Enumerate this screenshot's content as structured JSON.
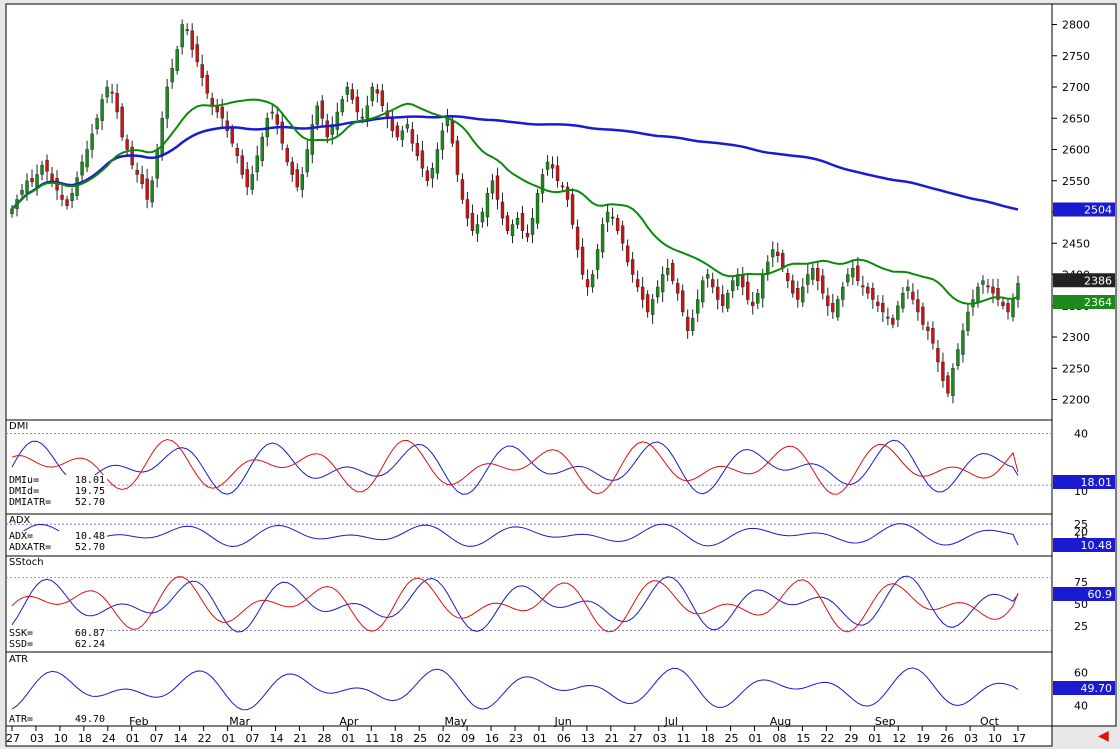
{
  "panels": {
    "dmi": {
      "title": "DMI",
      "labels": [
        "DMIu=",
        "DMId=",
        "DMIATR="
      ],
      "values": [
        "18.01",
        "19.75",
        "52.70"
      ],
      "badge_up": "18.01",
      "badge_down": "19.75"
    },
    "adx": {
      "title": "ADX",
      "labels": [
        "ADX=",
        "ADXATR="
      ],
      "values": [
        "10.48",
        "52.70"
      ],
      "badge": "10.48"
    },
    "sstoch": {
      "title": "SStoch",
      "labels": [
        "SSK=",
        "SSD="
      ],
      "values": [
        "60.87",
        "62.24"
      ],
      "badge": "60.9"
    },
    "atr": {
      "title": "ATR",
      "labels": [
        "ATR="
      ],
      "values": [
        "49.70"
      ],
      "badge": "49.70"
    }
  },
  "price_badges": {
    "ma200": "2504",
    "last": "2386",
    "ma20": "2364"
  },
  "colors": {
    "up": "#1a8a1a",
    "down": "#c81414",
    "ma20": "#0a8a0a",
    "ma200": "#1a1ad0",
    "dmi_up": "#1a1ad0",
    "dmi_down": "#e01010",
    "badge": "#1a1ad0"
  },
  "icons": {
    "back": "red-left-arrow-icon"
  },
  "chart_data": [
    {
      "type": "candlestick",
      "title": "",
      "ylim": [
        2180,
        2820
      ],
      "yticks": [
        2200,
        2250,
        2300,
        2350,
        2400,
        2450,
        2500,
        2550,
        2600,
        2650,
        2700,
        2750,
        2800
      ],
      "grid": false,
      "months": [
        {
          "label": "Feb",
          "day_index": 25
        },
        {
          "label": "Mar",
          "day_index": 45
        },
        {
          "label": "Apr",
          "day_index": 67
        },
        {
          "label": "May",
          "day_index": 88
        },
        {
          "label": "Jun",
          "day_index": 110
        },
        {
          "label": "Jul",
          "day_index": 132
        },
        {
          "label": "Aug",
          "day_index": 153
        },
        {
          "label": "Sep",
          "day_index": 174
        },
        {
          "label": "Oct",
          "day_index": 195
        }
      ],
      "x_ticks": [
        "27",
        "03",
        "10",
        "18",
        "24",
        "01",
        "07",
        "14",
        "22",
        "01",
        "07",
        "14",
        "21",
        "28",
        "01",
        "11",
        "18",
        "25",
        "02",
        "09",
        "16",
        "23",
        "01",
        "06",
        "13",
        "21",
        "27",
        "03",
        "11",
        "18",
        "25",
        "01",
        "08",
        "15",
        "22",
        "29",
        "01",
        "12",
        "19",
        "26",
        "03",
        "10",
        "17"
      ],
      "closes": [
        2505,
        2520,
        2535,
        2550,
        2548,
        2560,
        2575,
        2565,
        2550,
        2535,
        2520,
        2510,
        2530,
        2555,
        2580,
        2600,
        2625,
        2650,
        2680,
        2700,
        2690,
        2660,
        2620,
        2600,
        2575,
        2560,
        2545,
        2520,
        2550,
        2600,
        2650,
        2700,
        2730,
        2760,
        2800,
        2790,
        2760,
        2740,
        2715,
        2690,
        2670,
        2660,
        2650,
        2630,
        2610,
        2590,
        2560,
        2540,
        2560,
        2590,
        2620,
        2650,
        2660,
        2640,
        2610,
        2580,
        2560,
        2540,
        2560,
        2600,
        2640,
        2670,
        2650,
        2620,
        2640,
        2660,
        2680,
        2700,
        2680,
        2660,
        2650,
        2670,
        2700,
        2690,
        2670,
        2650,
        2630,
        2620,
        2630,
        2640,
        2610,
        2590,
        2570,
        2550,
        2570,
        2600,
        2630,
        2650,
        2610,
        2560,
        2520,
        2490,
        2470,
        2480,
        2500,
        2530,
        2550,
        2520,
        2490,
        2470,
        2480,
        2490,
        2470,
        2460,
        2490,
        2530,
        2560,
        2580,
        2570,
        2550,
        2540,
        2520,
        2480,
        2440,
        2400,
        2380,
        2400,
        2440,
        2480,
        2500,
        2490,
        2470,
        2450,
        2420,
        2400,
        2380,
        2360,
        2340,
        2360,
        2380,
        2400,
        2410,
        2390,
        2370,
        2340,
        2310,
        2330,
        2360,
        2390,
        2400,
        2380,
        2360,
        2350,
        2370,
        2390,
        2400,
        2380,
        2360,
        2350,
        2370,
        2400,
        2420,
        2440,
        2430,
        2410,
        2390,
        2370,
        2360,
        2380,
        2400,
        2410,
        2390,
        2370,
        2350,
        2340,
        2360,
        2380,
        2400,
        2410,
        2390,
        2380,
        2370,
        2360,
        2350,
        2340,
        2330,
        2320,
        2350,
        2370,
        2380,
        2360,
        2340,
        2320,
        2310,
        2290,
        2260,
        2230,
        2210,
        2250,
        2280,
        2310,
        2340,
        2360,
        2380,
        2390,
        2380,
        2370,
        2360,
        2350,
        2340,
        2360,
        2386
      ],
      "ma20_end": 2364,
      "ma200_end": 2504,
      "last": 2386
    },
    {
      "type": "line",
      "title": "DMI",
      "ylim": [
        0,
        45
      ],
      "yticks": [
        10,
        40
      ],
      "reference_lines": [
        40,
        13
      ],
      "series": [
        {
          "name": "DMIu",
          "color": "#1a1ad0",
          "last": 18.01
        },
        {
          "name": "DMId",
          "color": "#e01010",
          "last": 19.75
        }
      ]
    },
    {
      "type": "line",
      "title": "ADX",
      "ylim": [
        5,
        30
      ],
      "yticks": [
        15,
        20,
        25
      ],
      "reference_lines": [
        25
      ],
      "series": [
        {
          "name": "ADX",
          "color": "#1a1ad0",
          "last": 10.48
        }
      ]
    },
    {
      "type": "line",
      "title": "SStoch",
      "ylim": [
        0,
        100
      ],
      "yticks": [
        25,
        50,
        75
      ],
      "reference_lines": [
        80,
        20
      ],
      "series": [
        {
          "name": "SSK",
          "color": "#1a1ad0",
          "last": 60.87
        },
        {
          "name": "SSD",
          "color": "#e01010",
          "last": 62.24
        }
      ]
    },
    {
      "type": "line",
      "title": "ATR",
      "ylim": [
        30,
        70
      ],
      "yticks": [
        40,
        60
      ],
      "series": [
        {
          "name": "ATR",
          "color": "#1a1ad0",
          "last": 49.7
        }
      ]
    }
  ]
}
